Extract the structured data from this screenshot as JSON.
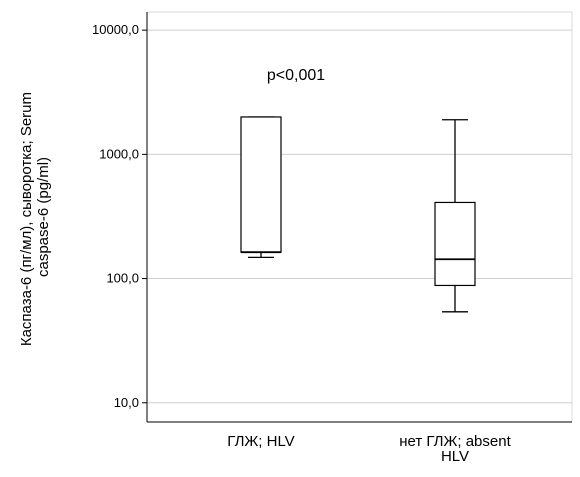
{
  "chart_data": {
    "type": "box",
    "ylabel": [
      "Каспаза-6 (пг/мл), сыворотка; Serum",
      "caspase-6 (pg/ml)"
    ],
    "xlabel": "",
    "y_scale": "log",
    "ylim": [
      7,
      14000
    ],
    "y_ticks": [
      10,
      100,
      1000,
      10000
    ],
    "y_tick_labels": [
      "10,0",
      "100,0",
      "1000,0",
      "10000,0"
    ],
    "grid": "horizontal",
    "categories": [
      [
        "ГЛЖ; HLV"
      ],
      [
        "нет ГЛЖ; absent",
        "HLV"
      ]
    ],
    "boxes": [
      {
        "whisker_low": 148,
        "q1": 163,
        "median": 163,
        "q3": 2000,
        "whisker_high": 2000
      },
      {
        "whisker_low": 54,
        "q1": 88,
        "median": 143,
        "q3": 410,
        "whisker_high": 1900
      }
    ],
    "annotations": [
      "p<0,001"
    ]
  }
}
